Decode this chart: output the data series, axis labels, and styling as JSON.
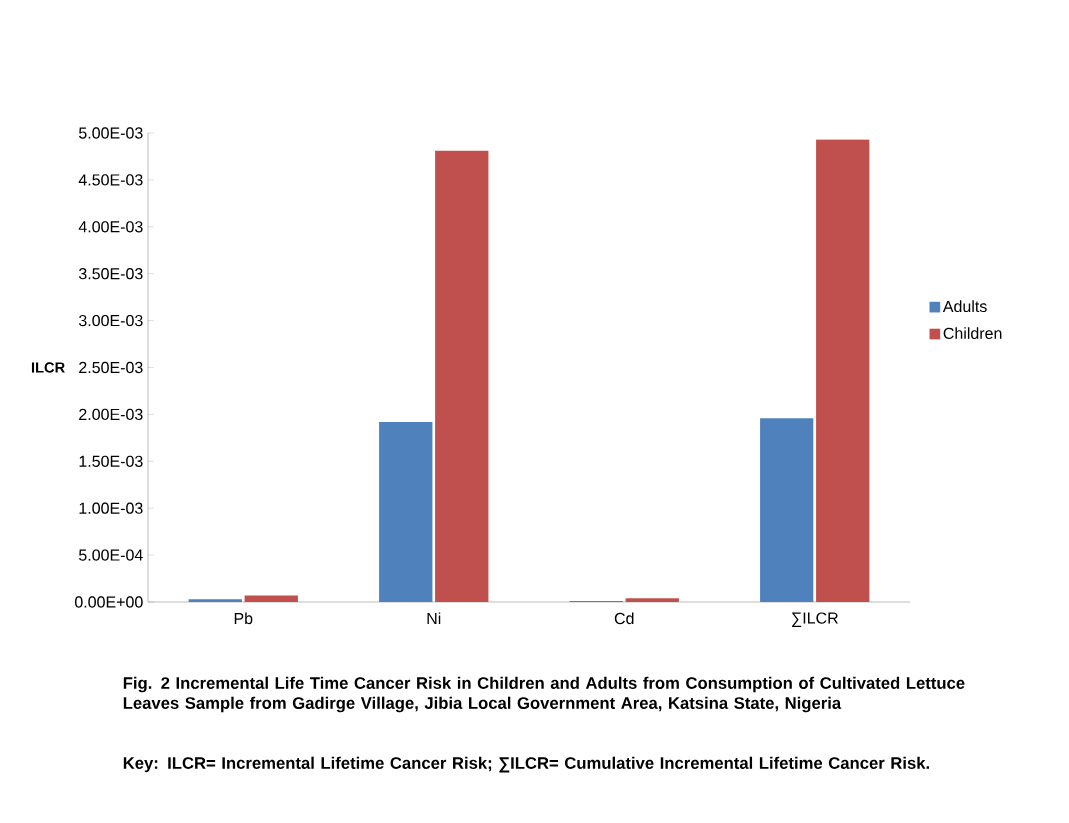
{
  "chart_data": {
    "type": "bar",
    "title": "Fig. 2 Incremental Life Time Cancer Risk in Children and Adults from Consumption of Cultivated Lettuce Leaves Sample from Gadirge Village, Jibia Local Government Area, Katsina State, Nigeria",
    "ylabel": "ILCR",
    "annotations": [
      "Key: ILCR= Incremental Lifetime Cancer Risk; ∑ILCR= Cumulative Incremental Lifetime Cancer Risk."
    ],
    "categories": [
      "Pb",
      "Ni",
      "Cd",
      "∑ILCR"
    ],
    "series": [
      {
        "name": "Adults",
        "color": "#4f81bd",
        "values": [
          3e-05,
          0.00192,
          1e-05,
          0.00196
        ]
      },
      {
        "name": "Children",
        "color": "#c0504d",
        "values": [
          7e-05,
          0.00481,
          4e-05,
          0.00493
        ]
      }
    ],
    "ylim": [
      0,
      0.005
    ],
    "yticks": [
      {
        "value": 0,
        "label": "0.00E+00"
      },
      {
        "value": 0.0005,
        "label": "5.00E-04"
      },
      {
        "value": 0.001,
        "label": "1.00E-03"
      },
      {
        "value": 0.0015,
        "label": "1.50E-03"
      },
      {
        "value": 0.002,
        "label": "2.00E-03"
      },
      {
        "value": 0.0025,
        "label": "2.50E-03"
      },
      {
        "value": 0.003,
        "label": "3.00E-03"
      },
      {
        "value": 0.0035,
        "label": "3.50E-03"
      },
      {
        "value": 0.004,
        "label": "4.00E-03"
      },
      {
        "value": 0.0045,
        "label": "4.50E-03"
      },
      {
        "value": 0.005,
        "label": "5.00E-03"
      }
    ],
    "grid": false,
    "legend": "right"
  }
}
